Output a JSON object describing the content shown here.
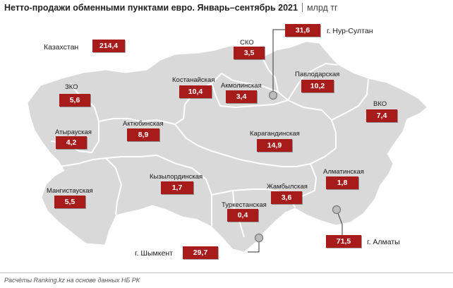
{
  "title": "Нетто-продажи обменными пунктами евро. Январь–сентябрь 2021",
  "unit": "млрд тг",
  "footer": "Расчёты Ranking.kz на основе данных НБ РК",
  "colors": {
    "value_box": "#a81b1b",
    "map_fill": "#d9d9d9",
    "border": "#ffffff",
    "marker": "#bfbfbf"
  },
  "total": {
    "label": "Казахстан",
    "value": "214,4"
  },
  "regions": [
    {
      "name": "ЗКО",
      "value": "5,6"
    },
    {
      "name": "СКО",
      "value": "3,5"
    },
    {
      "name": "Костанайская",
      "value": "10,4"
    },
    {
      "name": "Акмолинская",
      "value": "3,4"
    },
    {
      "name": "Павлодарская",
      "value": "10,2"
    },
    {
      "name": "ВКО",
      "value": "7,4"
    },
    {
      "name": "Атырауская",
      "value": "4,2"
    },
    {
      "name": "Актюбинская",
      "value": "8,9"
    },
    {
      "name": "Карагандинская",
      "value": "14,9"
    },
    {
      "name": "Мангистауская",
      "value": "5,5"
    },
    {
      "name": "Кызылординская",
      "value": "1,7"
    },
    {
      "name": "Алматинская",
      "value": "1,8"
    },
    {
      "name": "Жамбылская",
      "value": "3,6"
    },
    {
      "name": "Туркестанская",
      "value": "0,4"
    }
  ],
  "cities": [
    {
      "name": "г. Нур-Султан",
      "value": "31,6"
    },
    {
      "name": "г. Алматы",
      "value": "71,5"
    },
    {
      "name": "г. Шымкент",
      "value": "29,7"
    }
  ]
}
